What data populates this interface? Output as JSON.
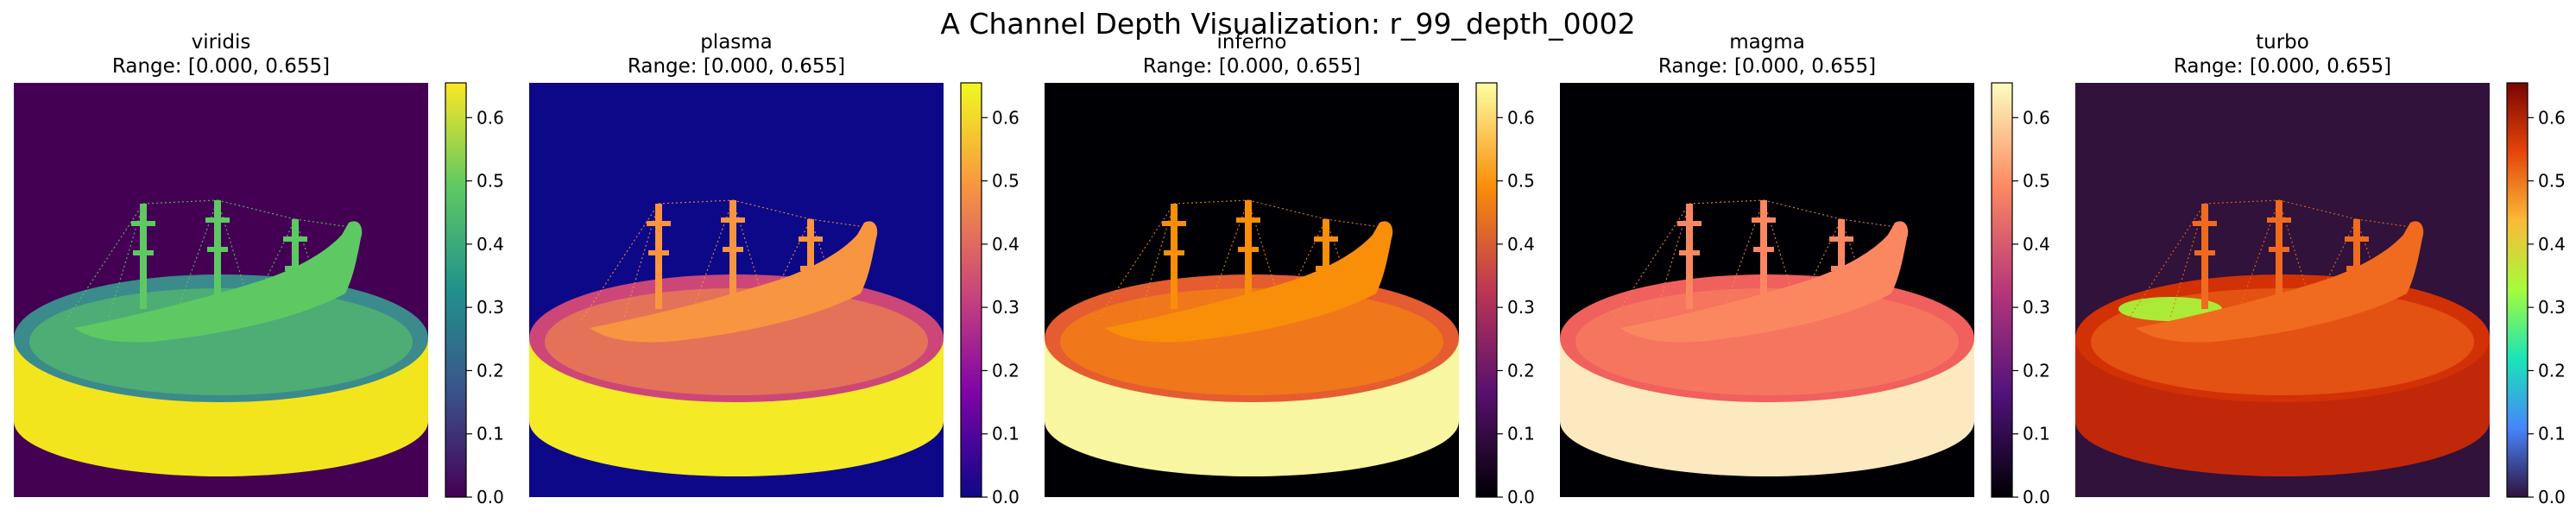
{
  "figure": {
    "suptitle": "A Channel Depth Visualization: r_99_depth_0002"
  },
  "chart_data": [
    {
      "type": "heatmap",
      "colormap": "viridis",
      "title": "viridis",
      "subtitle": "Range: [0.000, 0.655]",
      "range": [
        0.0,
        0.655
      ],
      "colorbar_ticks": [
        "0.0",
        "0.1",
        "0.2",
        "0.3",
        "0.4",
        "0.5",
        "0.6"
      ],
      "colors": {
        "background": "#440154",
        "ship": "#5ec962",
        "rim": "#3b8a8c",
        "base": "#f2e51d",
        "stops": [
          "#440154",
          "#3b528b",
          "#21918c",
          "#5ec962",
          "#fde725"
        ]
      }
    },
    {
      "type": "heatmap",
      "colormap": "plasma",
      "title": "plasma",
      "subtitle": "Range: [0.000, 0.655]",
      "range": [
        0.0,
        0.655
      ],
      "colorbar_ticks": [
        "0.0",
        "0.1",
        "0.2",
        "0.3",
        "0.4",
        "0.5",
        "0.6"
      ],
      "colors": {
        "background": "#0d0887",
        "ship": "#f89540",
        "rim": "#cc4778",
        "base": "#f4ea26",
        "stops": [
          "#0d0887",
          "#7e03a8",
          "#cc4778",
          "#f89540",
          "#f0f921"
        ]
      }
    },
    {
      "type": "heatmap",
      "colormap": "inferno",
      "title": "inferno",
      "subtitle": "Range: [0.000, 0.655]",
      "range": [
        0.0,
        0.655
      ],
      "colorbar_ticks": [
        "0.0",
        "0.1",
        "0.2",
        "0.3",
        "0.4",
        "0.5",
        "0.6"
      ],
      "colors": {
        "background": "#000004",
        "ship": "#f98e09",
        "rim": "#e55c30",
        "base": "#f8f6a0",
        "stops": [
          "#000004",
          "#57106e",
          "#bc3754",
          "#f98e09",
          "#fcffa4"
        ]
      }
    },
    {
      "type": "heatmap",
      "colormap": "magma",
      "title": "magma",
      "subtitle": "Range: [0.000, 0.655]",
      "range": [
        0.0,
        0.655
      ],
      "colorbar_ticks": [
        "0.0",
        "0.1",
        "0.2",
        "0.3",
        "0.4",
        "0.5",
        "0.6"
      ],
      "colors": {
        "background": "#000004",
        "ship": "#fb8761",
        "rim": "#f0605d",
        "base": "#fde9c0",
        "stops": [
          "#000004",
          "#51127c",
          "#b73779",
          "#fc8961",
          "#fcfdbf"
        ]
      }
    },
    {
      "type": "heatmap",
      "colormap": "turbo",
      "title": "turbo",
      "subtitle": "Range: [0.000, 0.655]",
      "range": [
        0.0,
        0.655
      ],
      "colorbar_ticks": [
        "0.0",
        "0.1",
        "0.2",
        "0.3",
        "0.4",
        "0.5",
        "0.6"
      ],
      "colors": {
        "background": "#30123b",
        "ship": "#f06b1f",
        "rim": "#d23105",
        "base": "#c1280a",
        "accent": "#a4fc3c",
        "stops": [
          "#30123b",
          "#4686fb",
          "#1ae4b6",
          "#a4fc3c",
          "#faba39",
          "#e4460a",
          "#7a0403"
        ]
      }
    }
  ]
}
